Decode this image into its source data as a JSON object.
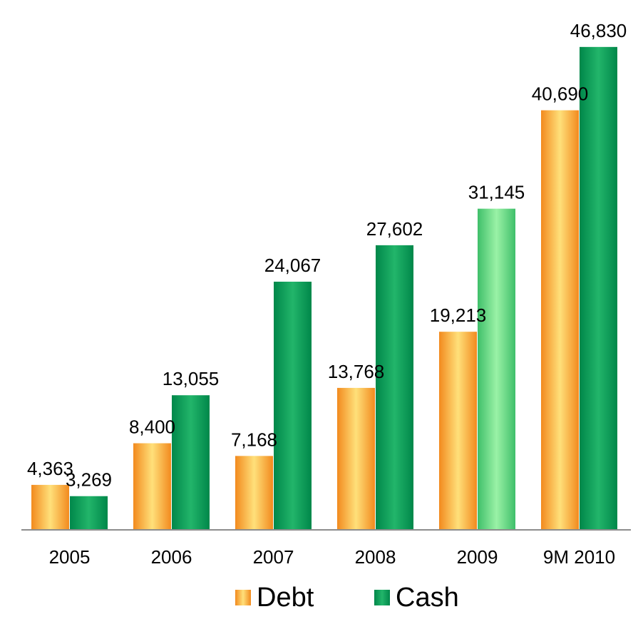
{
  "chart_data": {
    "type": "bar",
    "categories": [
      "2005",
      "2006",
      "2007",
      "2008",
      "2009",
      "9M 2010"
    ],
    "series": [
      {
        "name": "Debt",
        "values": [
          4363,
          8400,
          7168,
          13768,
          19213,
          40690
        ],
        "labels": [
          "4,363",
          "8,400",
          "7,168",
          "13,768",
          "19,213",
          "40,690"
        ]
      },
      {
        "name": "Cash",
        "values": [
          3269,
          13055,
          24067,
          27602,
          31145,
          46830
        ],
        "labels": [
          "3,269",
          "13,055",
          "24,067",
          "27,602",
          "31,145",
          "46,830"
        ]
      }
    ],
    "ylim": [
      0,
      50000
    ],
    "grid": false,
    "legend_position": "bottom",
    "colors": {
      "debt_edge": "#f28a1e",
      "debt_center": "#ffe07a",
      "cash_edge": "#00874a",
      "cash_center": "#22b56a",
      "cash_highlight_center": "#9af2a6",
      "axis": "#8c8c8c"
    }
  }
}
